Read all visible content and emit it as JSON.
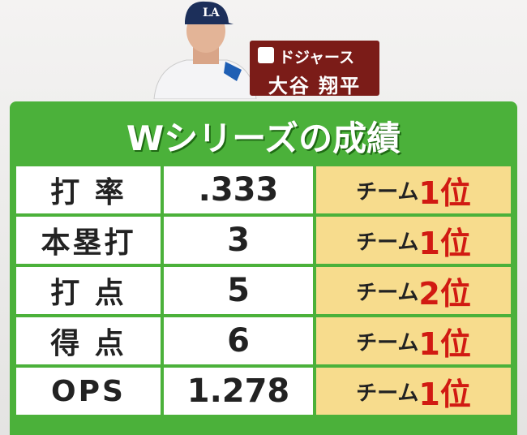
{
  "header": {
    "team": "ドジャース",
    "player": "大谷 翔平"
  },
  "table": {
    "title": "Wシリーズの成績",
    "rows": [
      [
        "打 率",
        ".333",
        "チーム",
        "1位"
      ],
      [
        "本塁打",
        "3",
        "チーム",
        "1位"
      ],
      [
        "打 点",
        "5",
        "チーム",
        "2位"
      ],
      [
        "得 点",
        "6",
        "チーム",
        "1位"
      ],
      [
        "OPS",
        "1.278",
        "チーム",
        "1位"
      ]
    ]
  }
}
